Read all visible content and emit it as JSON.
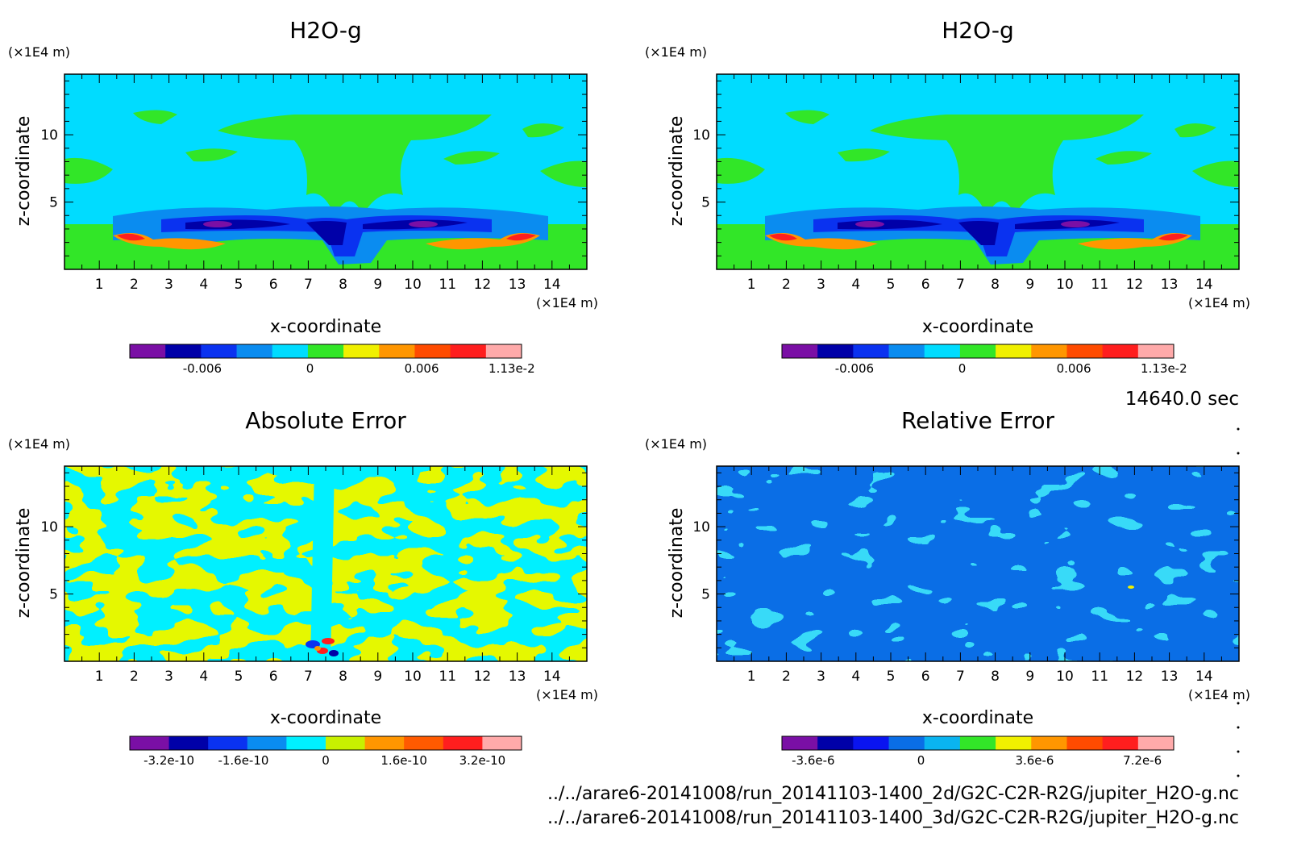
{
  "timestamp": "14640.0 sec",
  "file_paths": [
    "../../arare6-20141008/run_20141103-1400_2d/G2C-C2R-R2G/jupiter_H2O-g.nc",
    "../../arare6-20141008/run_20141103-1400_3d/G2C-C2R-R2G/jupiter_H2O-g.nc"
  ],
  "chart_data": [
    {
      "type": "heatmap",
      "title": "H2O-g",
      "xlabel": "x-coordinate",
      "ylabel": "z-coordinate",
      "x_unit": "(×1E4 m)",
      "y_unit": "(×1E4 m)",
      "xlim": [
        0,
        15
      ],
      "ylim": [
        0,
        14.5
      ],
      "x_ticks": [
        "1",
        "2",
        "3",
        "4",
        "5",
        "6",
        "7",
        "8",
        "9",
        "10",
        "11",
        "12",
        "13",
        "14"
      ],
      "y_ticks": [
        "5",
        "10"
      ],
      "background_level": "0",
      "colorbar": {
        "colors": [
          "#7a0fa5",
          "#0000a8",
          "#0a32f0",
          "#0a8cf0",
          "#00dcff",
          "#32e628",
          "#f0f000",
          "#ff9600",
          "#ff4b00",
          "#ff1e1e",
          "#ffaaaa"
        ],
        "tick_labels": [
          "-0.006",
          "0",
          "0.006",
          "1.13e-2"
        ]
      }
    },
    {
      "type": "heatmap",
      "title": "H2O-g",
      "xlabel": "x-coordinate",
      "ylabel": "z-coordinate",
      "x_unit": "(×1E4 m)",
      "y_unit": "(×1E4 m)",
      "xlim": [
        0,
        15
      ],
      "ylim": [
        0,
        14.5
      ],
      "x_ticks": [
        "1",
        "2",
        "3",
        "4",
        "5",
        "6",
        "7",
        "8",
        "9",
        "10",
        "11",
        "12",
        "13",
        "14"
      ],
      "y_ticks": [
        "5",
        "10"
      ],
      "background_level": "0",
      "colorbar": {
        "colors": [
          "#7a0fa5",
          "#0000a8",
          "#0a32f0",
          "#0a8cf0",
          "#00dcff",
          "#32e628",
          "#f0f000",
          "#ff9600",
          "#ff4b00",
          "#ff1e1e",
          "#ffaaaa"
        ],
        "tick_labels": [
          "-0.006",
          "0",
          "0.006",
          "1.13e-2"
        ]
      }
    },
    {
      "type": "heatmap",
      "title": "Absolute Error",
      "xlabel": "x-coordinate",
      "ylabel": "z-coordinate",
      "x_unit": "(×1E4 m)",
      "y_unit": "(×1E4 m)",
      "xlim": [
        0,
        15
      ],
      "ylim": [
        0,
        14.5
      ],
      "x_ticks": [
        "1",
        "2",
        "3",
        "4",
        "5",
        "6",
        "7",
        "8",
        "9",
        "10",
        "11",
        "12",
        "13",
        "14"
      ],
      "y_ticks": [
        "5",
        "10"
      ],
      "colorbar": {
        "colors": [
          "#7a0fa5",
          "#0000a8",
          "#0a32f0",
          "#0a8cf0",
          "#00f0ff",
          "#c8f000",
          "#ff9600",
          "#ff5a00",
          "#ff1e1e",
          "#ffaaaa"
        ],
        "tick_labels": [
          "-3.2e-10",
          "-1.6e-10",
          "0",
          "1.6e-10",
          "3.2e-10"
        ]
      }
    },
    {
      "type": "heatmap",
      "title": "Relative Error",
      "xlabel": "x-coordinate",
      "ylabel": "z-coordinate",
      "x_unit": "(×1E4 m)",
      "y_unit": "(×1E4 m)",
      "xlim": [
        0,
        15
      ],
      "ylim": [
        0,
        14.5
      ],
      "x_ticks": [
        "1",
        "2",
        "3",
        "4",
        "5",
        "6",
        "7",
        "8",
        "9",
        "10",
        "11",
        "12",
        "13",
        "14"
      ],
      "y_ticks": [
        "5",
        "10"
      ],
      "colorbar": {
        "colors": [
          "#7a0fa5",
          "#0000a8",
          "#0a14f0",
          "#0a6ee6",
          "#0ab4f0",
          "#32e628",
          "#f0f000",
          "#ff9600",
          "#ff4b00",
          "#ff1e1e",
          "#ffaaaa"
        ],
        "tick_labels": [
          "-3.6e-6",
          "0",
          "3.6e-6",
          "7.2e-6"
        ]
      }
    }
  ]
}
